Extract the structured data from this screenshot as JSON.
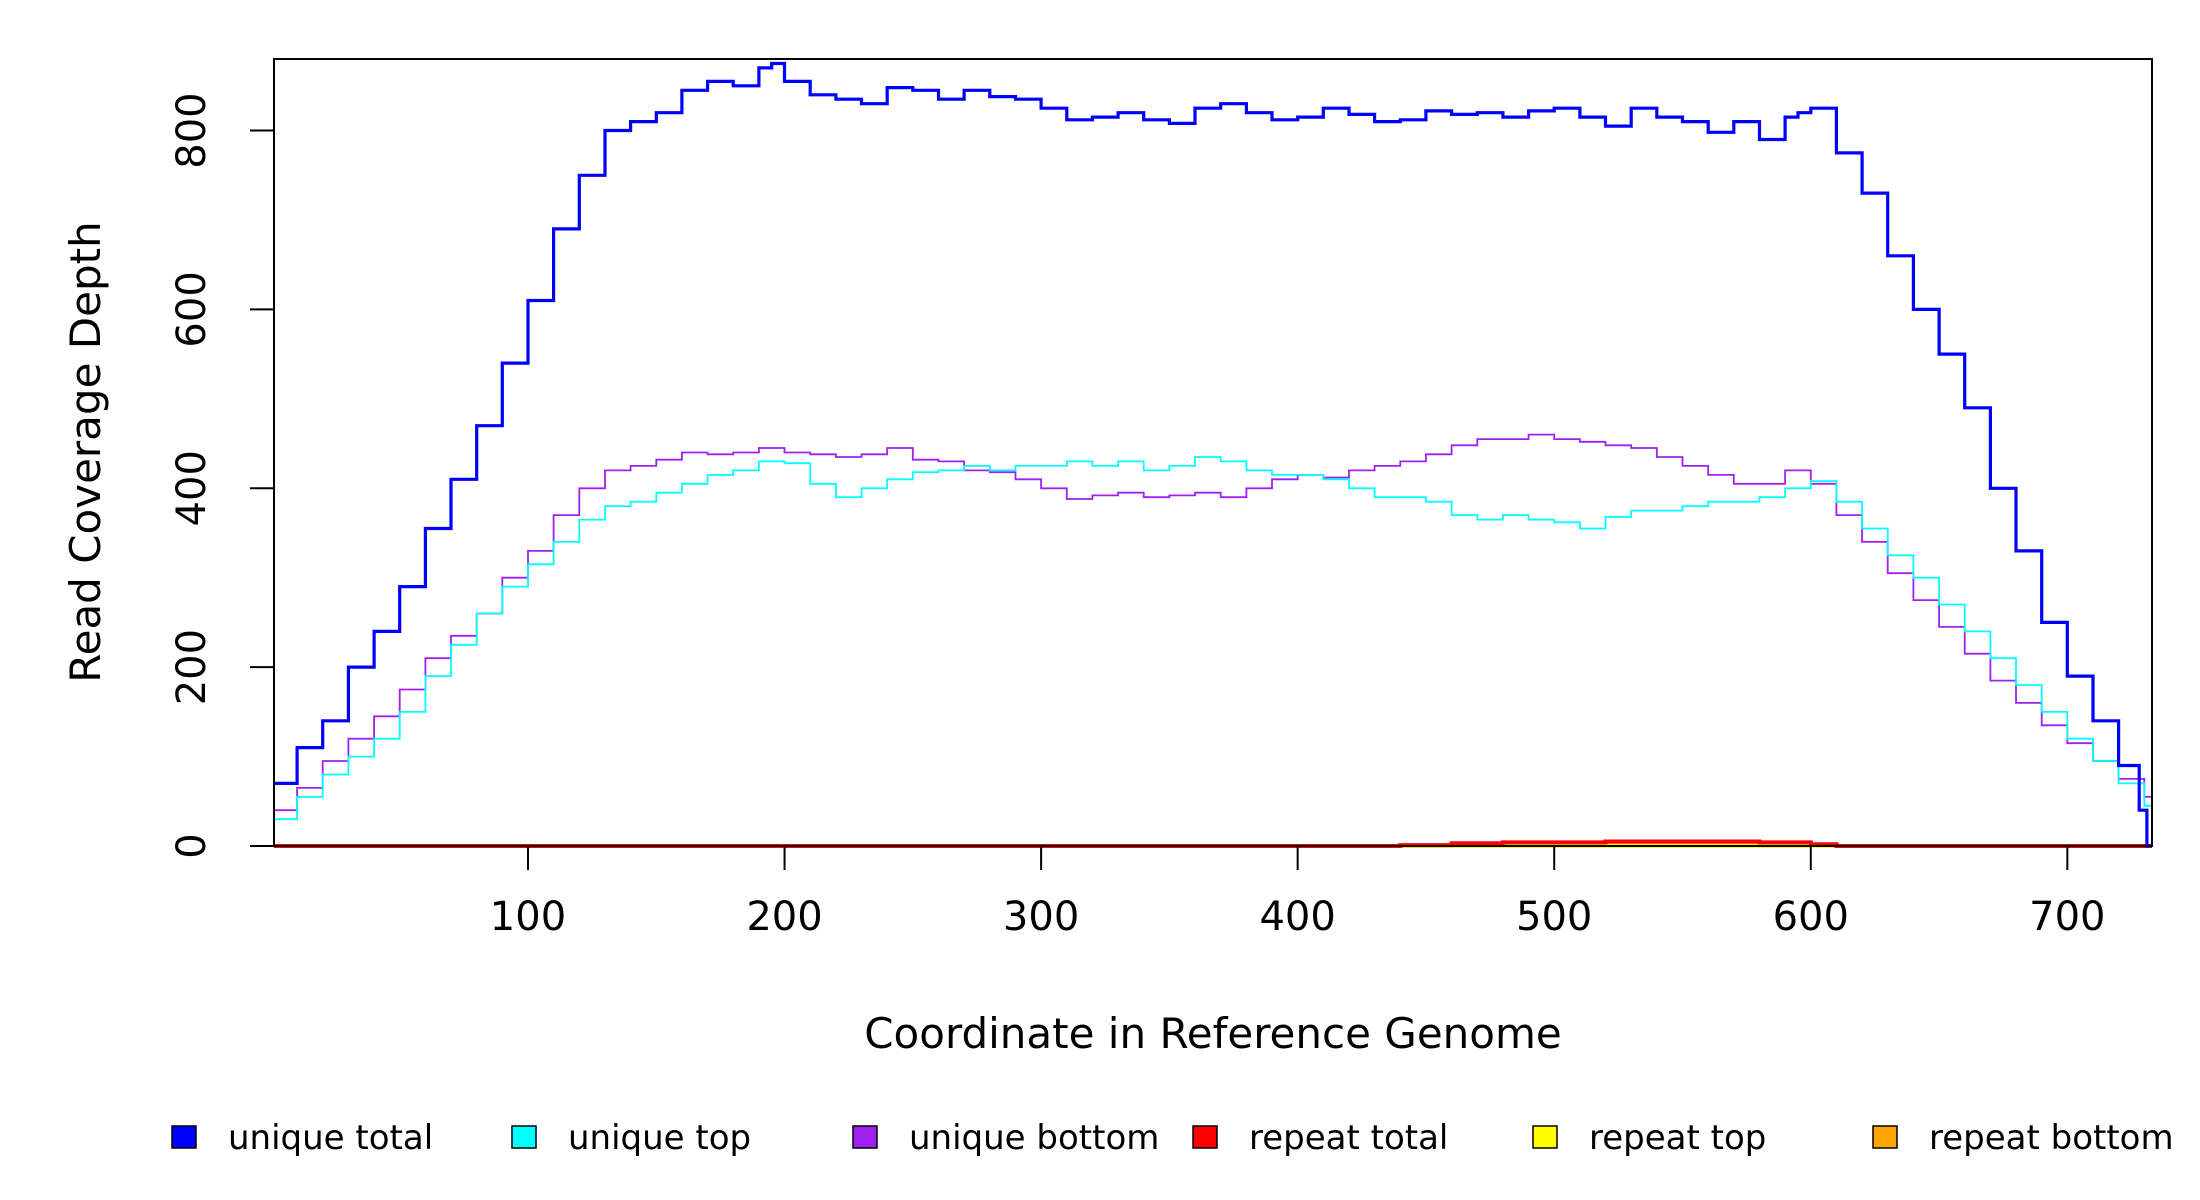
{
  "chart_data": {
    "type": "line",
    "xlabel": "Coordinate in Reference Genome",
    "ylabel": "Read Coverage Depth",
    "xlim": [
      1,
      733
    ],
    "ylim": [
      0,
      880
    ],
    "x_ticks": [
      100,
      200,
      300,
      400,
      500,
      600,
      700
    ],
    "y_ticks": [
      0,
      200,
      400,
      600,
      800
    ],
    "x_tick_labels": [
      "100",
      "200",
      "300",
      "400",
      "500",
      "600",
      "700"
    ],
    "y_tick_labels": [
      "0",
      "200",
      "400",
      "600",
      "800"
    ],
    "grid": false,
    "legend_position": "bottom",
    "series": [
      {
        "name": "unique total",
        "color": "#0000ff",
        "x": [
          1,
          10,
          20,
          30,
          40,
          50,
          60,
          70,
          80,
          90,
          100,
          110,
          120,
          130,
          140,
          150,
          160,
          170,
          180,
          190,
          195,
          200,
          210,
          220,
          230,
          240,
          250,
          260,
          270,
          280,
          290,
          300,
          310,
          320,
          330,
          340,
          350,
          360,
          370,
          380,
          390,
          400,
          410,
          420,
          430,
          440,
          450,
          460,
          470,
          480,
          490,
          500,
          510,
          520,
          530,
          540,
          550,
          560,
          570,
          580,
          590,
          595,
          600,
          610,
          620,
          630,
          640,
          650,
          660,
          670,
          680,
          690,
          700,
          710,
          720,
          728,
          731,
          732,
          733
        ],
        "y": [
          70,
          110,
          140,
          200,
          240,
          290,
          355,
          410,
          470,
          540,
          610,
          690,
          750,
          800,
          810,
          820,
          845,
          855,
          850,
          870,
          875,
          855,
          840,
          835,
          830,
          848,
          845,
          835,
          845,
          838,
          835,
          825,
          812,
          815,
          820,
          812,
          808,
          825,
          830,
          820,
          812,
          815,
          825,
          818,
          810,
          812,
          822,
          818,
          820,
          815,
          822,
          825,
          815,
          805,
          825,
          815,
          810,
          798,
          810,
          790,
          815,
          820,
          825,
          775,
          730,
          660,
          600,
          550,
          490,
          400,
          330,
          250,
          190,
          140,
          90,
          40,
          0,
          0,
          0
        ]
      },
      {
        "name": "unique top",
        "color": "#00ffff",
        "x": [
          1,
          10,
          20,
          30,
          40,
          50,
          60,
          70,
          80,
          90,
          100,
          110,
          120,
          130,
          140,
          150,
          160,
          170,
          180,
          190,
          200,
          210,
          220,
          230,
          240,
          250,
          260,
          270,
          280,
          290,
          300,
          310,
          320,
          330,
          340,
          350,
          360,
          370,
          380,
          390,
          400,
          410,
          420,
          430,
          440,
          450,
          460,
          470,
          480,
          490,
          500,
          510,
          520,
          530,
          540,
          550,
          560,
          570,
          580,
          590,
          600,
          610,
          620,
          630,
          640,
          650,
          660,
          670,
          680,
          690,
          700,
          710,
          720,
          730,
          733
        ],
        "y": [
          30,
          55,
          80,
          100,
          120,
          150,
          190,
          225,
          260,
          290,
          315,
          340,
          365,
          380,
          385,
          395,
          405,
          415,
          420,
          430,
          428,
          405,
          390,
          400,
          410,
          418,
          420,
          425,
          420,
          425,
          425,
          430,
          425,
          430,
          420,
          425,
          435,
          430,
          420,
          415,
          415,
          410,
          400,
          390,
          390,
          385,
          370,
          365,
          370,
          365,
          362,
          355,
          368,
          375,
          375,
          380,
          385,
          385,
          390,
          400,
          408,
          385,
          355,
          325,
          300,
          270,
          240,
          210,
          180,
          150,
          120,
          95,
          70,
          45,
          5
        ]
      },
      {
        "name": "unique bottom",
        "color": "#a020f0",
        "x": [
          1,
          10,
          20,
          30,
          40,
          50,
          60,
          70,
          80,
          90,
          100,
          110,
          120,
          130,
          140,
          150,
          160,
          170,
          180,
          190,
          200,
          210,
          220,
          230,
          240,
          250,
          260,
          270,
          280,
          290,
          300,
          310,
          320,
          330,
          340,
          350,
          360,
          370,
          380,
          390,
          400,
          410,
          420,
          430,
          440,
          450,
          460,
          470,
          480,
          490,
          500,
          510,
          520,
          530,
          540,
          550,
          560,
          570,
          580,
          590,
          600,
          610,
          620,
          630,
          640,
          650,
          660,
          670,
          680,
          690,
          700,
          710,
          720,
          730,
          733
        ],
        "y": [
          40,
          65,
          95,
          120,
          145,
          175,
          210,
          235,
          260,
          300,
          330,
          370,
          400,
          420,
          425,
          432,
          440,
          438,
          440,
          445,
          440,
          438,
          435,
          438,
          445,
          432,
          430,
          420,
          418,
          410,
          400,
          388,
          392,
          395,
          390,
          392,
          395,
          390,
          400,
          410,
          415,
          412,
          420,
          425,
          430,
          438,
          448,
          455,
          455,
          460,
          455,
          452,
          448,
          445,
          435,
          425,
          415,
          405,
          405,
          420,
          405,
          370,
          340,
          305,
          275,
          245,
          215,
          185,
          160,
          135,
          115,
          95,
          75,
          55,
          5
        ]
      },
      {
        "name": "repeat total",
        "color": "#ff0000",
        "x": [
          1,
          420,
          440,
          460,
          480,
          500,
          520,
          540,
          560,
          580,
          600,
          610,
          733
        ],
        "y": [
          0,
          0,
          1,
          3,
          4,
          4,
          5,
          5,
          5,
          4,
          2,
          0,
          0
        ]
      },
      {
        "name": "repeat top",
        "color": "#ffff00",
        "x": [
          1,
          733
        ],
        "y": [
          0,
          0
        ]
      },
      {
        "name": "repeat bottom",
        "color": "#ffa500",
        "x": [
          1,
          420,
          460,
          500,
          540,
          580,
          610,
          733
        ],
        "y": [
          0,
          0,
          1,
          2,
          2,
          1,
          0,
          0
        ]
      }
    ]
  }
}
